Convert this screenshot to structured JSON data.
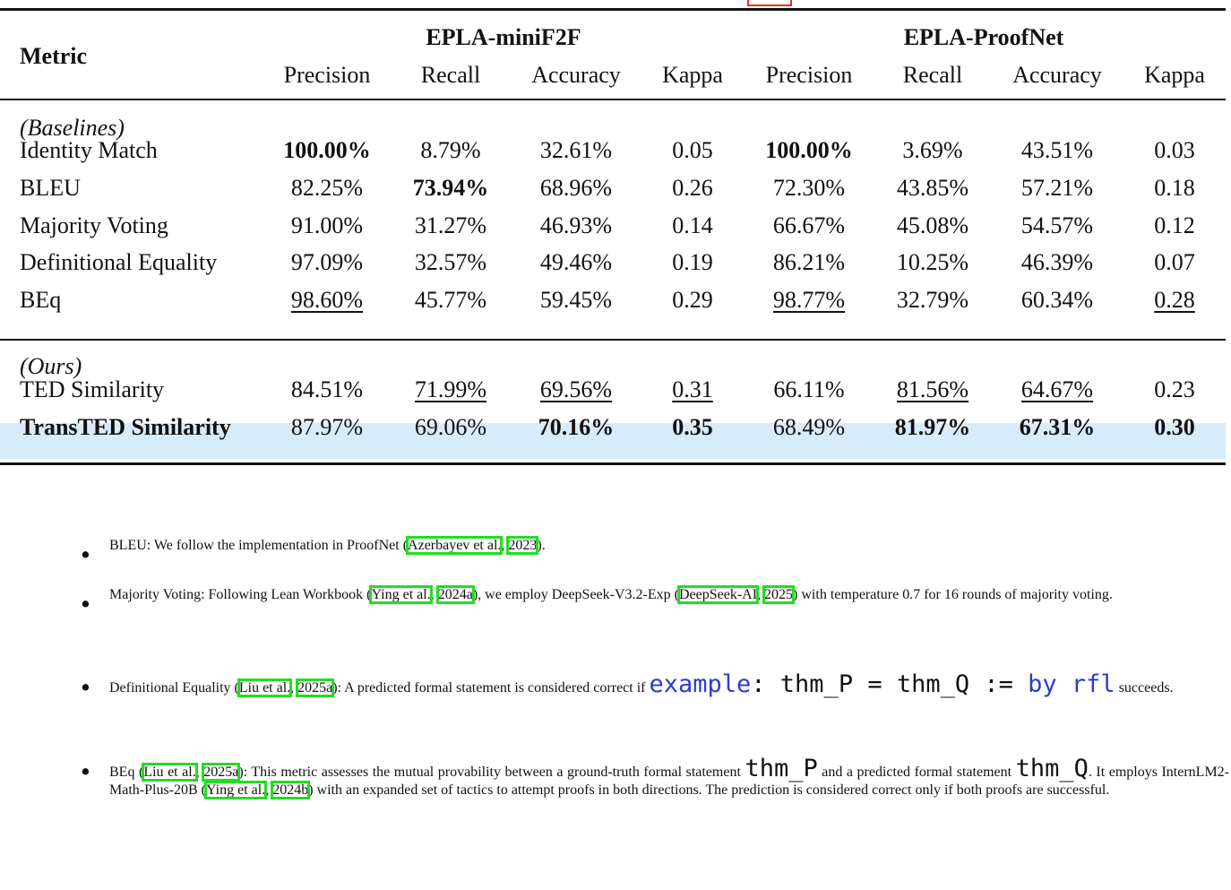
{
  "table": {
    "metric_header": "Metric",
    "group1": "EPLA-miniF2F",
    "group2": "EPLA-ProofNet",
    "subheaders": [
      "Precision",
      "Recall",
      "Accuracy",
      "Kappa",
      "Precision",
      "Recall",
      "Accuracy",
      "Kappa"
    ],
    "section_baselines": "(Baselines)",
    "section_ours": "(Ours)",
    "rows": [
      {
        "name": "Identity Match",
        "v": [
          "100.00%",
          "8.79%",
          "32.61%",
          "0.05",
          "100.00%",
          "3.69%",
          "43.51%",
          "0.03"
        ]
      },
      {
        "name": "BLEU",
        "v": [
          "82.25%",
          "73.94%",
          "68.96%",
          "0.26",
          "72.30%",
          "43.85%",
          "57.21%",
          "0.18"
        ]
      },
      {
        "name": "Majority Voting",
        "v": [
          "91.00%",
          "31.27%",
          "46.93%",
          "0.14",
          "66.67%",
          "45.08%",
          "54.57%",
          "0.12"
        ]
      },
      {
        "name": "Definitional Equality",
        "v": [
          "97.09%",
          "32.57%",
          "49.46%",
          "0.19",
          "86.21%",
          "10.25%",
          "46.39%",
          "0.07"
        ]
      },
      {
        "name": "BEq",
        "v": [
          "98.60%",
          "45.77%",
          "59.45%",
          "0.29",
          "98.77%",
          "32.79%",
          "60.34%",
          "0.28"
        ]
      },
      {
        "name": "TED Similarity",
        "v": [
          "84.51%",
          "71.99%",
          "69.56%",
          "0.31",
          "66.11%",
          "81.56%",
          "64.67%",
          "0.23"
        ]
      },
      {
        "name": "TransTED Similarity",
        "v": [
          "87.97%",
          "69.06%",
          "70.16%",
          "0.35",
          "68.49%",
          "81.97%",
          "67.31%",
          "0.30"
        ]
      }
    ]
  },
  "bullets": {
    "b1": {
      "pre": "BLEU: We follow the implementation in ProofNet (",
      "c1": "Azerbayev et al.",
      "sep": ", ",
      "c2": "2023",
      "post": ")."
    },
    "b2": {
      "pre": "Majority Voting: Following Lean Workbook (",
      "c1": "Ying et al.",
      "sep": ", ",
      "c2": "2024a",
      "mid": "), we employ DeepSeek-V3.2-Exp (",
      "c3": "DeepSeek-AI",
      "sep2": ", ",
      "c4": "2025",
      "post": ") with temperature 0.7 for 16 rounds of majority voting."
    },
    "b3": {
      "pre": "Definitional Equality (",
      "c1": "Liu et al.",
      "sep": ", ",
      "c2": "2025a",
      "mid": "): A predicted formal statement is considered correct if ",
      "code_kw1": "example",
      "code_mid": ": thm_P = thm_Q := ",
      "code_kw2": "by",
      "code_sp": " ",
      "code_kw3": "rfl",
      "post": " succeeds."
    },
    "b4": {
      "pre": "BEq (",
      "c1": "Liu et al.",
      "sep": ", ",
      "c2": "2025a",
      "mid1": "): This metric assesses the mutual provability between a ground-truth formal statement ",
      "code1": "thm_P",
      "mid2": " and a predicted formal statement ",
      "code2": "thm_Q",
      "mid3": ". It employs InternLM2-Math-Plus-20B (",
      "c3": "Ying et al.",
      "sep2": ", ",
      "c4": "2024b",
      "post": ") with an expanded set of tactics to attempt proofs in both directions. The prediction is considered correct only if both proofs are successful."
    }
  }
}
